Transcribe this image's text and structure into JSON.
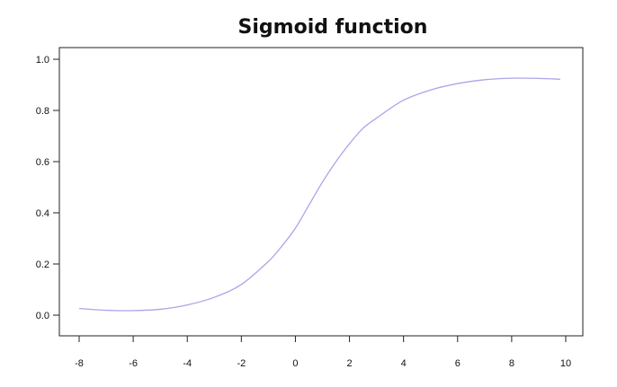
{
  "chart_data": {
    "type": "line",
    "title": "Sigmoid function",
    "xlabel": "",
    "ylabel": "",
    "xlim": [
      -8,
      10
    ],
    "ylim": [
      0,
      1
    ],
    "grid": false,
    "x_ticks": [
      -8,
      -6,
      -4,
      -2,
      0,
      2,
      4,
      6,
      8,
      10
    ],
    "y_ticks": [
      "0.0",
      "0.2",
      "0.4",
      "0.6",
      "0.8",
      "1.0"
    ],
    "series": [
      {
        "color": "#a9a6e8",
        "x": [
          -8,
          -7,
          -6,
          -5,
          -4,
          -3,
          -2,
          -1,
          -0.5,
          0,
          0.5,
          1,
          1.5,
          2,
          2.5,
          3,
          4,
          5,
          6,
          7,
          8,
          9,
          9.8
        ],
        "y": [
          0.026,
          0.019,
          0.018,
          0.023,
          0.04,
          0.07,
          0.12,
          0.21,
          0.27,
          0.34,
          0.43,
          0.52,
          0.6,
          0.67,
          0.73,
          0.77,
          0.84,
          0.88,
          0.905,
          0.92,
          0.926,
          0.925,
          0.922
        ]
      }
    ]
  }
}
